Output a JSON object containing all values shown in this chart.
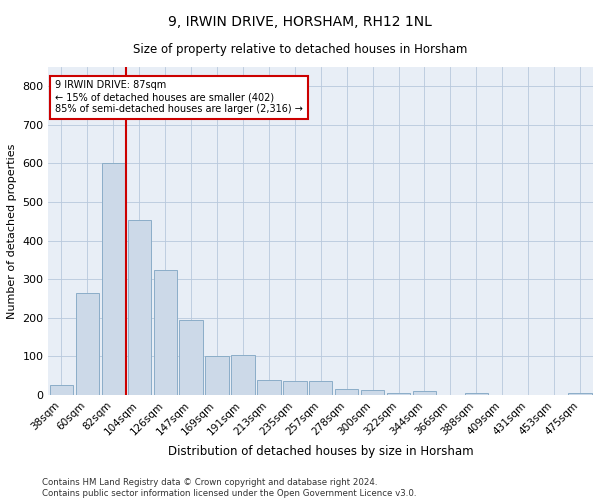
{
  "title": "9, IRWIN DRIVE, HORSHAM, RH12 1NL",
  "subtitle": "Size of property relative to detached houses in Horsham",
  "xlabel": "Distribution of detached houses by size in Horsham",
  "ylabel": "Number of detached properties",
  "footnote": "Contains HM Land Registry data © Crown copyright and database right 2024.\nContains public sector information licensed under the Open Government Licence v3.0.",
  "bar_color": "#ccd9e8",
  "bar_edge_color": "#8badc8",
  "background_color": "#e8eef6",
  "annotation_text": "9 IRWIN DRIVE: 87sqm\n← 15% of detached houses are smaller (402)\n85% of semi-detached houses are larger (2,316) →",
  "annotation_box_color": "#ffffff",
  "annotation_box_edge": "#cc0000",
  "vline_color": "#cc0000",
  "vline_x_index": 2,
  "categories": [
    "38sqm",
    "60sqm",
    "82sqm",
    "104sqm",
    "126sqm",
    "147sqm",
    "169sqm",
    "191sqm",
    "213sqm",
    "235sqm",
    "257sqm",
    "278sqm",
    "300sqm",
    "322sqm",
    "344sqm",
    "366sqm",
    "388sqm",
    "409sqm",
    "431sqm",
    "453sqm",
    "475sqm"
  ],
  "values": [
    27,
    265,
    600,
    453,
    325,
    195,
    100,
    103,
    40,
    37,
    37,
    15,
    12,
    5,
    10,
    0,
    5,
    0,
    0,
    0,
    5
  ],
  "ylim": [
    0,
    850
  ],
  "yticks": [
    0,
    100,
    200,
    300,
    400,
    500,
    600,
    700,
    800
  ],
  "title_fontsize": 10,
  "subtitle_fontsize": 8.5,
  "ylabel_fontsize": 8,
  "xlabel_fontsize": 8.5,
  "tick_fontsize": 7.5,
  "footnote_fontsize": 6.2
}
